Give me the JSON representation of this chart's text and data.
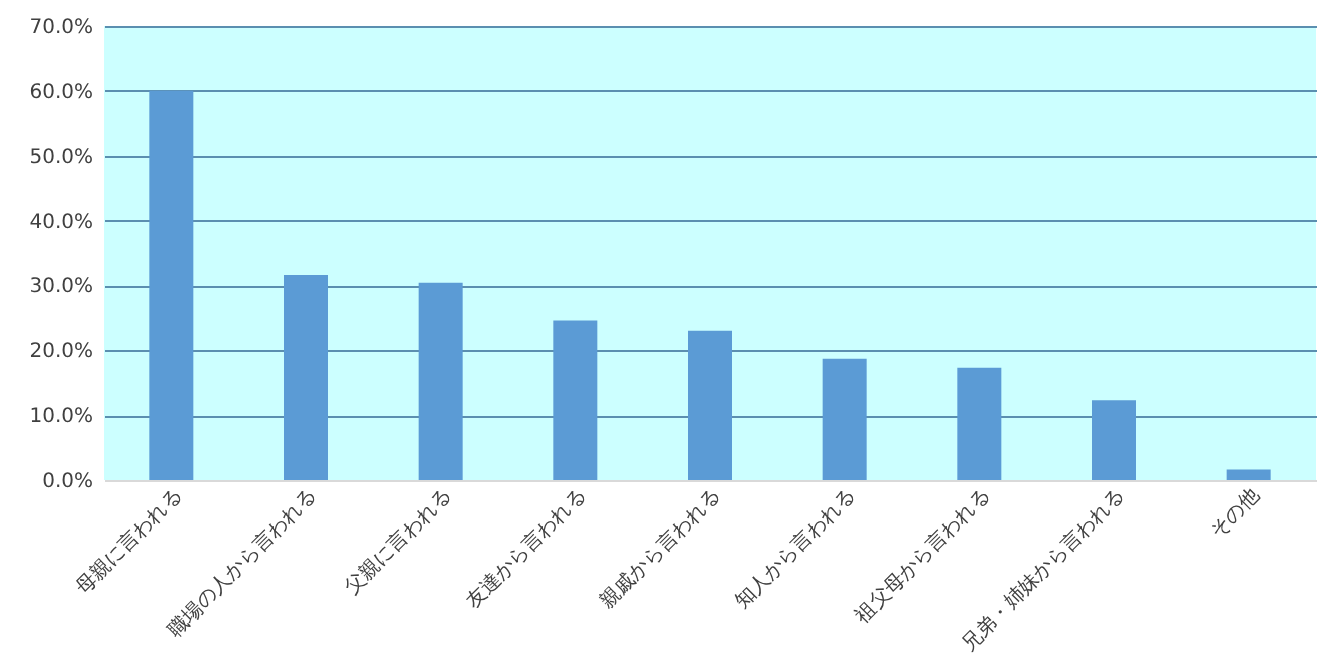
{
  "chart_data": {
    "type": "bar",
    "categories": [
      "母親に言われる",
      "職場の人から言われる",
      "父親に言われる",
      "友達から言われる",
      "親戚から言われる",
      "知人から言われる",
      "祖父母から言われる",
      "兄弟・姉妹から言われる",
      "その他"
    ],
    "values": [
      60.0,
      31.6,
      30.4,
      24.6,
      23.0,
      18.7,
      17.3,
      12.3,
      1.6
    ],
    "color": "#5b9bd5",
    "ylim": [
      0,
      70
    ],
    "yticks": [
      {
        "value": 0,
        "label": "0.0%"
      },
      {
        "value": 10,
        "label": "10.0%"
      },
      {
        "value": 20,
        "label": "20.0%"
      },
      {
        "value": 30,
        "label": "30.0%"
      },
      {
        "value": 40,
        "label": "40.0%"
      },
      {
        "value": 50,
        "label": "50.0%"
      },
      {
        "value": 60,
        "label": "60.0%"
      },
      {
        "value": 70,
        "label": "70.0%"
      }
    ],
    "grid": "y"
  }
}
